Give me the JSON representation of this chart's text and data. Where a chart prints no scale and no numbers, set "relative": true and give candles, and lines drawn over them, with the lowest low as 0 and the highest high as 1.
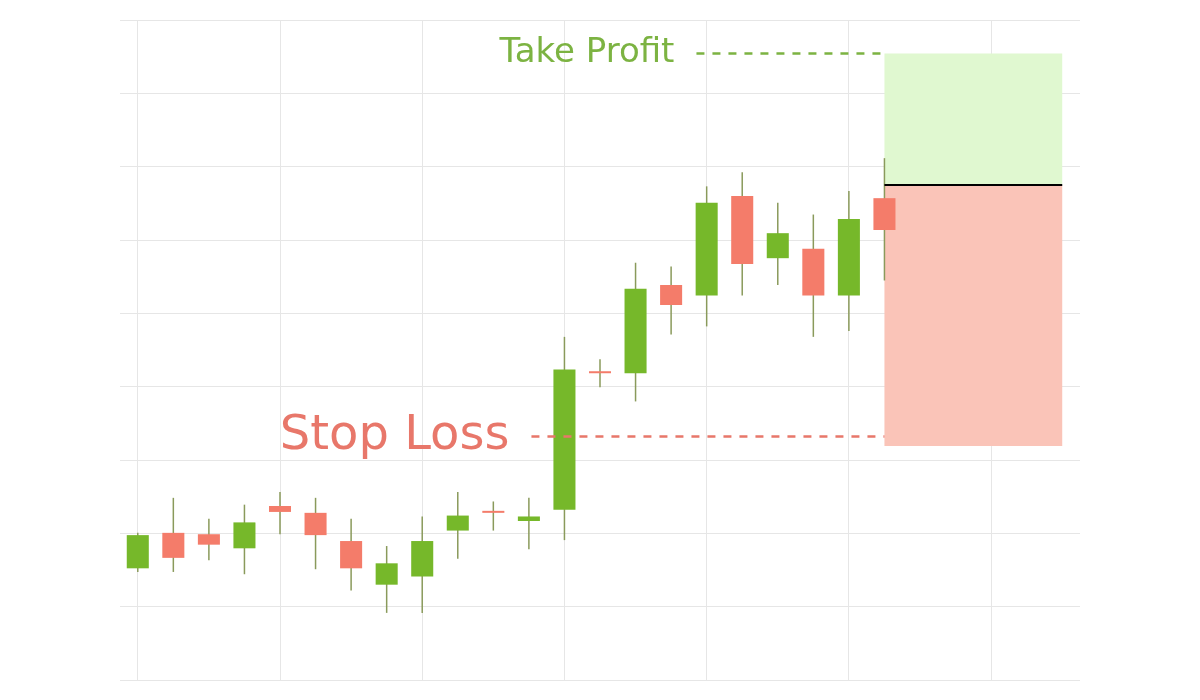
{
  "chart_data": {
    "type": "candlestick",
    "relative": true,
    "grid": true,
    "legend": false,
    "tick_labels": false,
    "categories": [
      null,
      null,
      null,
      null,
      null,
      null,
      null,
      null,
      null,
      null,
      null,
      null,
      null,
      null,
      null,
      null,
      null,
      null,
      null,
      null,
      null,
      null,
      null,
      null,
      null,
      null,
      null
    ],
    "ohlc": [
      [
        0.098,
        0.176,
        0.09,
        0.171
      ],
      [
        0.176,
        0.253,
        0.09,
        0.121
      ],
      [
        0.173,
        0.207,
        0.116,
        0.15
      ],
      [
        0.142,
        0.238,
        0.085,
        0.199
      ],
      [
        0.235,
        0.266,
        0.173,
        0.222
      ],
      [
        0.22,
        0.253,
        0.096,
        0.171
      ],
      [
        0.158,
        0.207,
        0.049,
        0.098
      ],
      [
        0.062,
        0.147,
        0,
        0.109
      ],
      [
        0.08,
        0.212,
        0,
        0.158
      ],
      [
        0.181,
        0.266,
        0.119,
        0.214
      ],
      [
        0.222,
        0.245,
        0.181,
        0.22
      ],
      [
        0.202,
        0.253,
        0.14,
        0.212
      ],
      [
        0.227,
        0.607,
        0.16,
        0.535
      ],
      [
        0.53,
        0.558,
        0.496,
        0.527
      ],
      [
        0.527,
        0.77,
        0.465,
        0.713
      ],
      [
        0.721,
        0.762,
        0.612,
        0.677
      ],
      [
        0.698,
        0.938,
        0.63,
        0.902
      ],
      [
        0.917,
        0.969,
        0.698,
        0.767
      ],
      [
        0.78,
        0.902,
        0.721,
        0.835
      ],
      [
        0.801,
        0.876,
        0.607,
        0.698
      ],
      [
        0.698,
        0.928,
        0.62,
        0.866
      ],
      [
        0.912,
        1,
        0.731,
        0.842
      ],
      null,
      null,
      null,
      null,
      null
    ],
    "colors": [
      "#76b82a",
      "#f47c6a",
      "#f47c6a",
      "#76b82a",
      "#f47c6a",
      "#f47c6a",
      "#f47c6a",
      "#76b82a",
      "#76b82a",
      "#76b82a",
      "#f47c6a",
      "#76b82a",
      "#76b82a",
      "#f47c6a",
      "#76b82a",
      "#f47c6a",
      "#76b82a",
      "#f47c6a",
      "#76b82a",
      "#f47c6a",
      "#76b82a",
      "#f47c6a",
      null,
      null,
      null,
      null,
      null
    ],
    "bands": [
      {
        "axis": "y",
        "from": 0.941,
        "to": 1.23,
        "color": "#e0f8d0"
      },
      {
        "axis": "y",
        "from": 0.367,
        "to": 0.941,
        "color": "#fac4b8"
      }
    ],
    "ref_lines": [
      {
        "axis": "y",
        "value": 1.23,
        "label": "Take Profit",
        "color": "#7cb342",
        "line_style": "dashed"
      },
      {
        "axis": "y",
        "value": 0.388,
        "label": "Stop Loss",
        "color": "#e8776a",
        "line_style": "dashed"
      },
      {
        "axis": "y",
        "value": 0.941,
        "color": "#000000",
        "line_style": "solid"
      }
    ]
  }
}
